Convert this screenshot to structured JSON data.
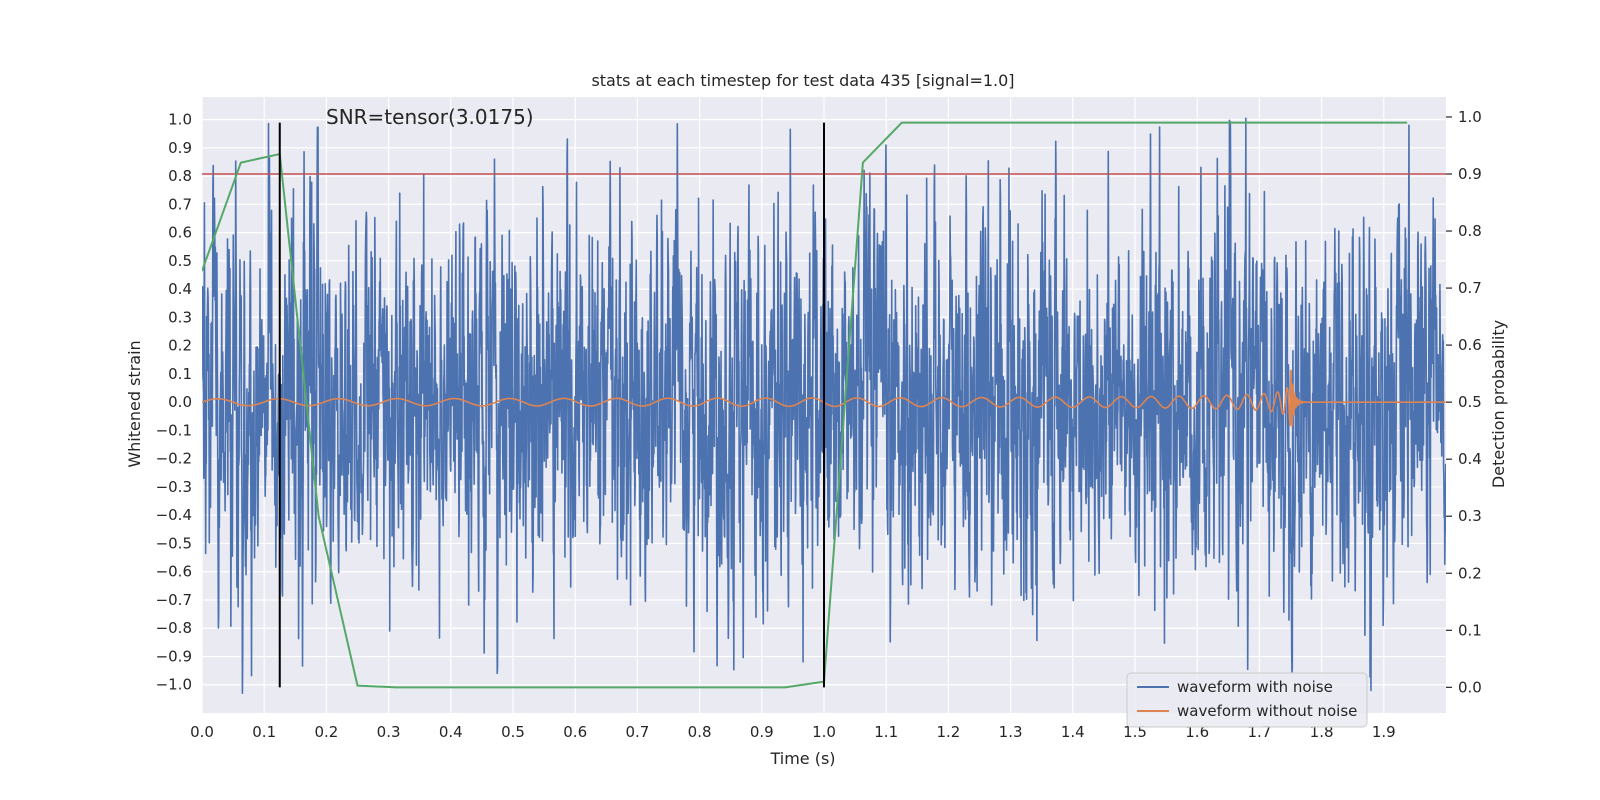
{
  "chart_data": {
    "type": "line",
    "title": "stats at each timestep for test data 435 [signal=1.0]",
    "xlabel": "Time (s)",
    "ylabel": "Whitened strain",
    "y2label": "Detection probability",
    "xlim": [
      0.0,
      2.0
    ],
    "ylim": [
      -1.1,
      1.08
    ],
    "y2lim": [
      -0.045,
      1.035
    ],
    "x_ticks": [
      "0.0",
      "0.1",
      "0.2",
      "0.3",
      "0.4",
      "0.5",
      "0.6",
      "0.7",
      "0.8",
      "0.9",
      "1.0",
      "1.1",
      "1.2",
      "1.3",
      "1.4",
      "1.5",
      "1.6",
      "1.7",
      "1.8",
      "1.9"
    ],
    "y_ticks": [
      "−1.0",
      "−0.9",
      "−0.8",
      "−0.7",
      "−0.6",
      "−0.5",
      "−0.4",
      "−0.3",
      "−0.2",
      "−0.1",
      "0.0",
      "0.1",
      "0.2",
      "0.3",
      "0.4",
      "0.5",
      "0.6",
      "0.7",
      "0.8",
      "0.9",
      "1.0"
    ],
    "y2_ticks": [
      "0.0",
      "0.1",
      "0.2",
      "0.3",
      "0.4",
      "0.5",
      "0.6",
      "0.7",
      "0.8",
      "0.9",
      "1.0"
    ],
    "grid": true,
    "legend_position": "lower-right",
    "annotation": "SNR=tensor(3.0175)",
    "threshold_y2": 0.9,
    "vlines_x": [
      0.125,
      1.0
    ],
    "series": [
      {
        "name": "waveform with noise",
        "color": "#4c72b0",
        "kind": "noise",
        "sample_rate_hz": 2048,
        "approx_std": 0.33
      },
      {
        "name": "waveform without noise",
        "color": "#dd8452",
        "kind": "chirp",
        "merger_time_s": 1.75,
        "amplitude_start": 0.012,
        "amplitude_peak": 0.15
      },
      {
        "color": "#55a868",
        "axis": "right",
        "x": [
          0.0,
          0.0625,
          0.125,
          0.1875,
          0.25,
          0.3125,
          0.9375,
          1.0,
          1.0625,
          1.125,
          1.9375
        ],
        "values": [
          0.73,
          0.92,
          0.935,
          0.3,
          0.003,
          0.0,
          0.0,
          0.01,
          0.92,
          0.99,
          0.99
        ]
      }
    ],
    "colors": {
      "threshold": "#c44e52",
      "vline": "#000000",
      "background": "#eaeaf2",
      "grid": "#ffffff"
    }
  }
}
